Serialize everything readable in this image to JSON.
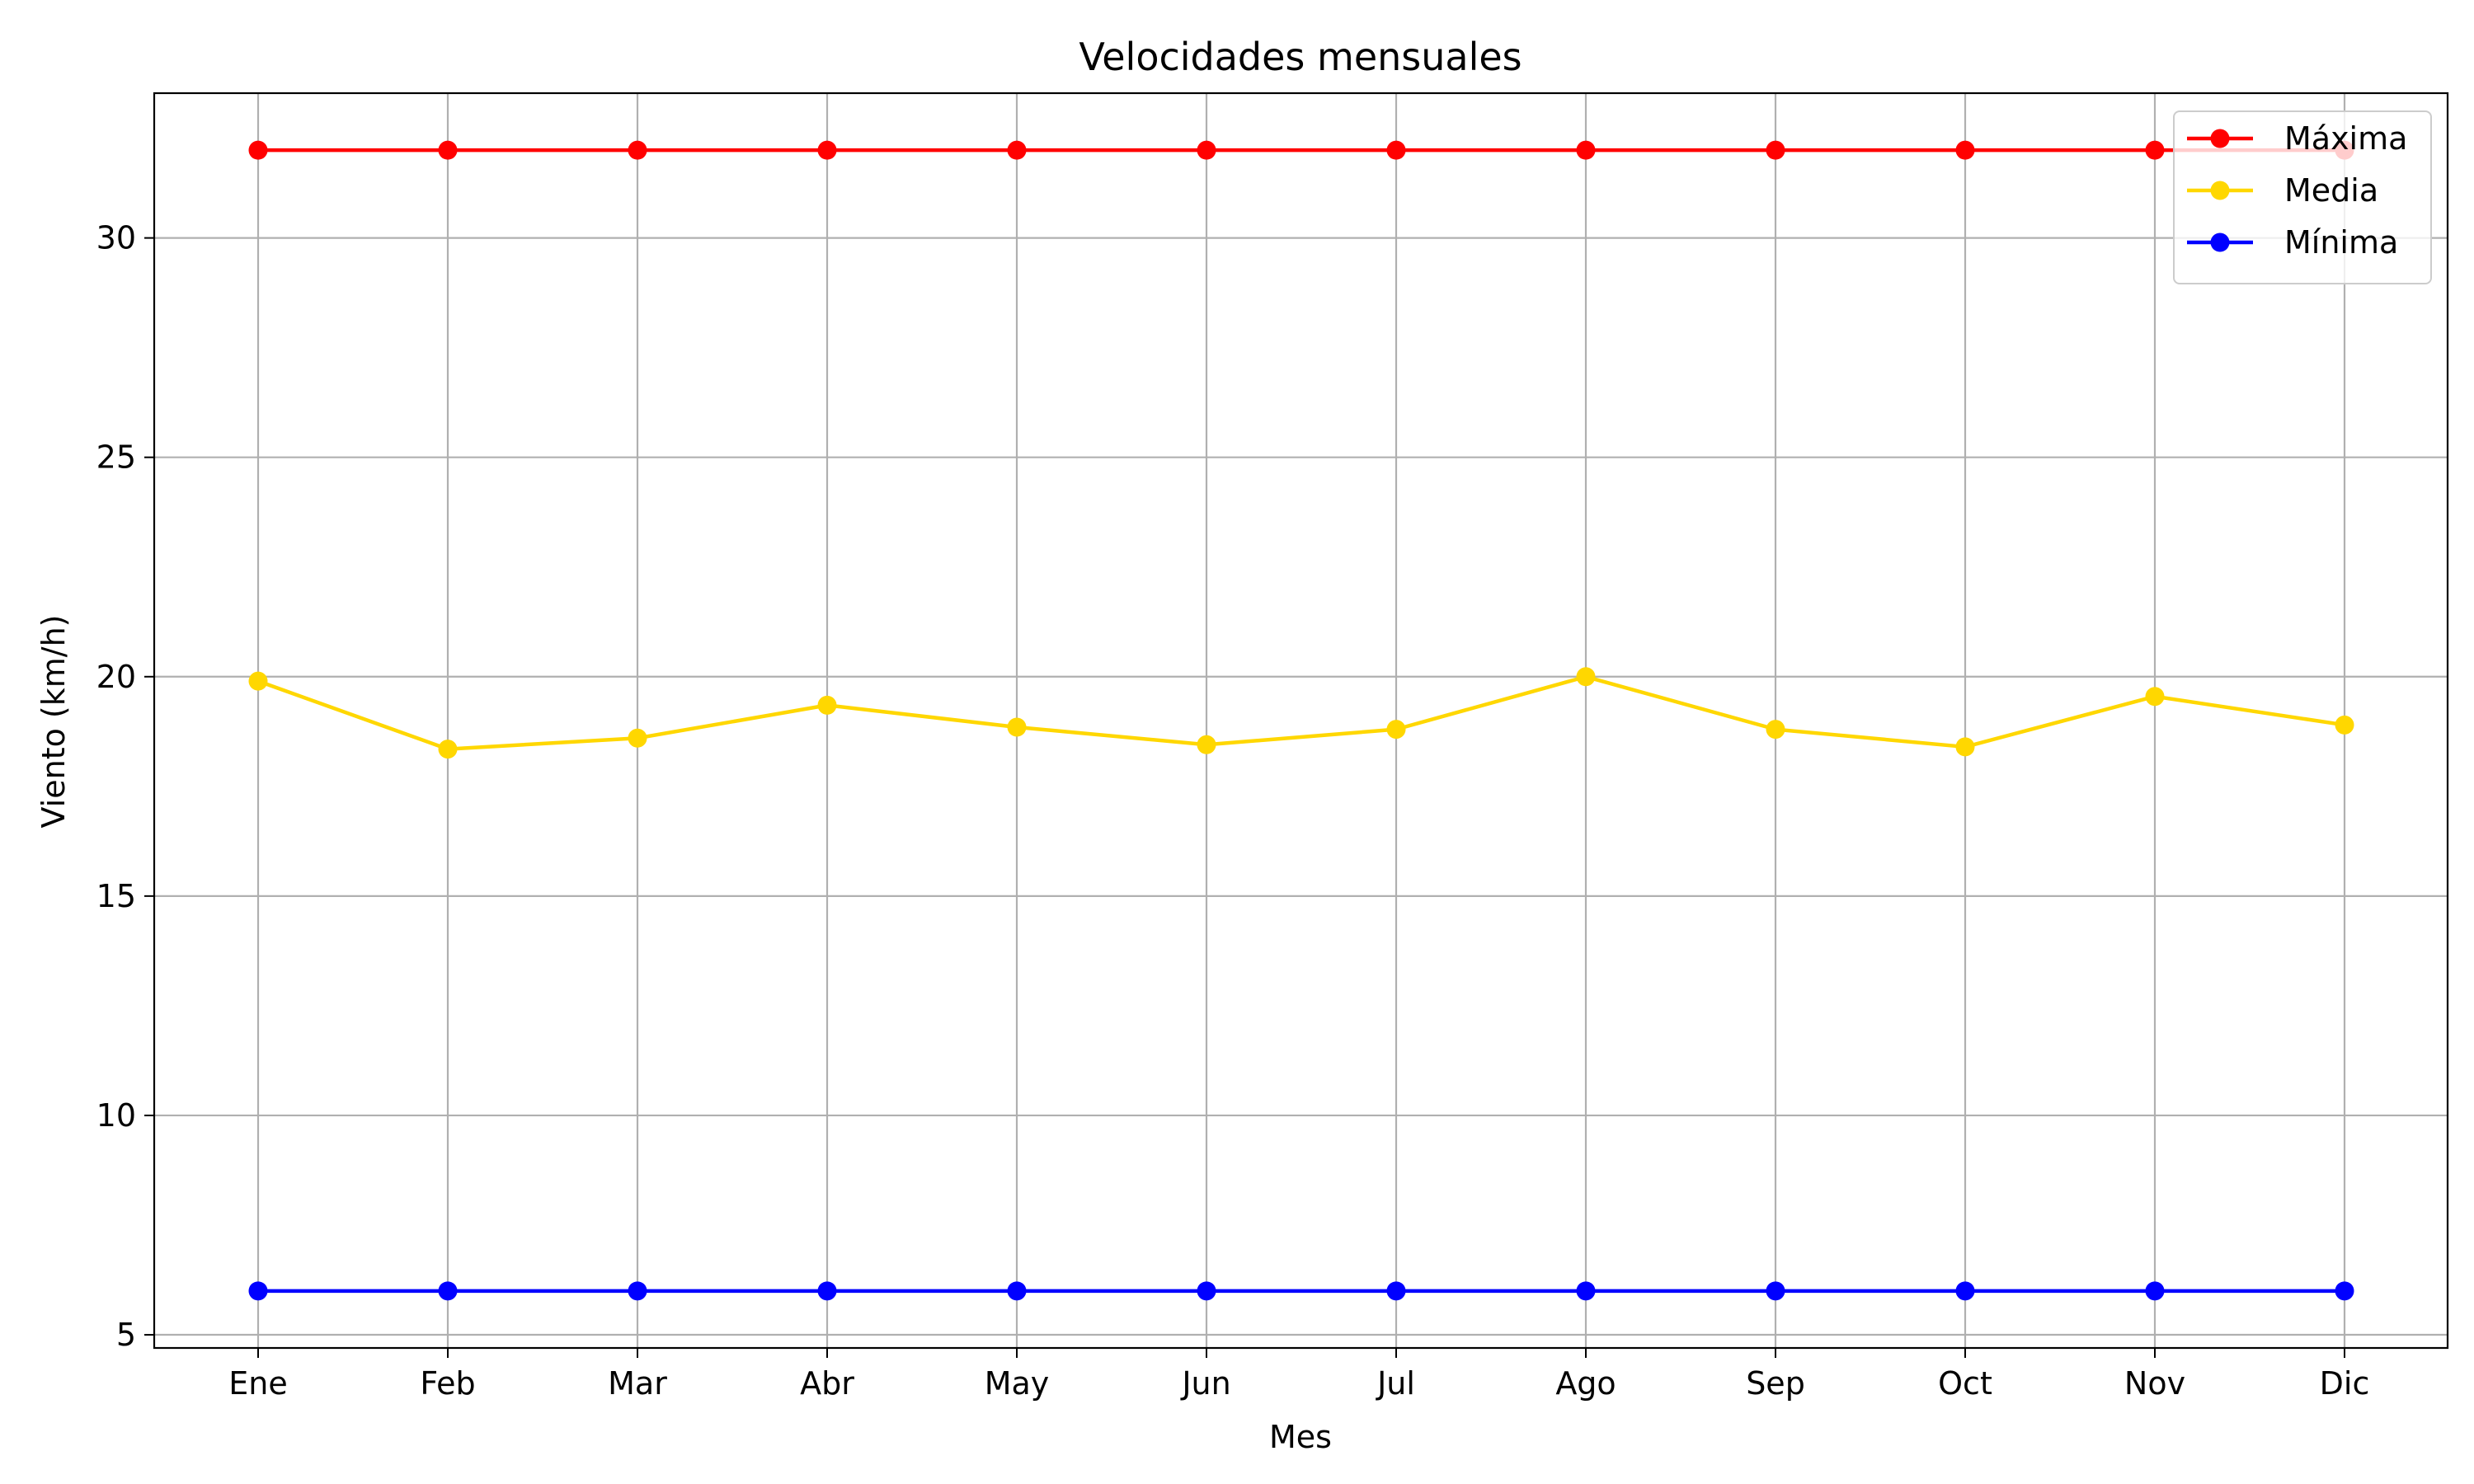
{
  "chart_data": {
    "type": "line",
    "title": "Velocidades mensuales",
    "xlabel": "Mes",
    "ylabel": "Viento (km/h)",
    "categories": [
      "Ene",
      "Feb",
      "Mar",
      "Abr",
      "May",
      "Jun",
      "Jul",
      "Ago",
      "Sep",
      "Oct",
      "Nov",
      "Dic"
    ],
    "ylim": [
      4.7,
      33.3
    ],
    "yticks": [
      5,
      10,
      15,
      20,
      25,
      30
    ],
    "grid": true,
    "legend_position": "top-right",
    "series": [
      {
        "name": "Máxima",
        "color": "#ff0000",
        "marker": "circle",
        "values": [
          32,
          32,
          32,
          32,
          32,
          32,
          32,
          32,
          32,
          32,
          32,
          32
        ]
      },
      {
        "name": "Media",
        "color": "#ffd700",
        "marker": "circle",
        "values": [
          19.9,
          18.35,
          18.6,
          19.35,
          18.85,
          18.45,
          18.8,
          20.0,
          18.8,
          18.4,
          19.55,
          18.9
        ]
      },
      {
        "name": "Mínima",
        "color": "#0000ff",
        "marker": "circle",
        "values": [
          6,
          6,
          6,
          6,
          6,
          6,
          6,
          6,
          6,
          6,
          6,
          6
        ]
      }
    ]
  }
}
